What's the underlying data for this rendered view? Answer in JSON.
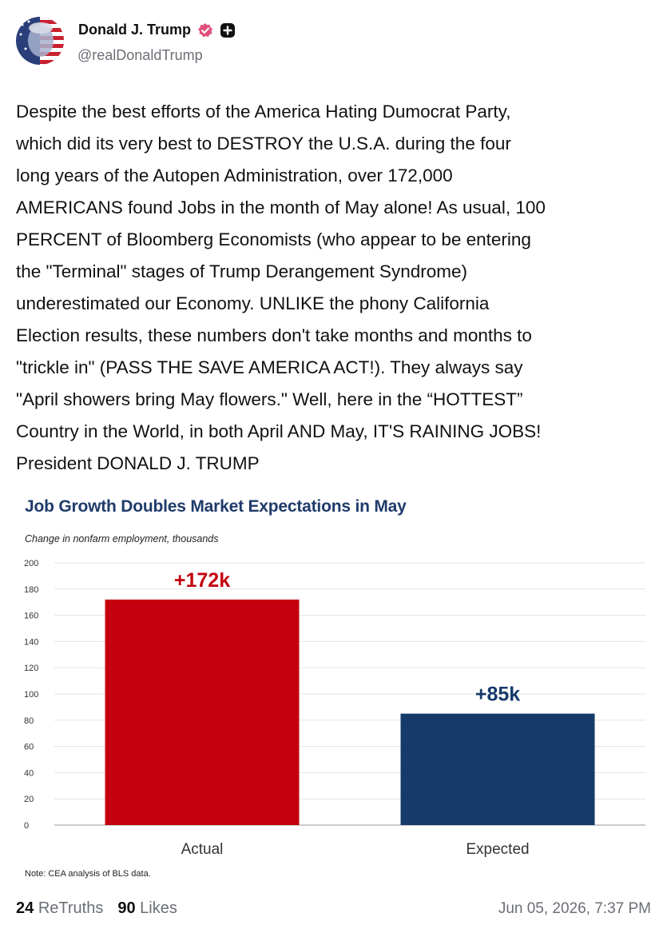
{
  "author": {
    "name": "Donald J. Trump",
    "handle": "@realDonaldTrump"
  },
  "post": {
    "text": "Despite the best efforts of the America Hating Dumocrat Party,\nwhich did its very best to DESTROY the U.S.A. during the four\nlong years of the Autopen Administration, over 172,000\nAMERICANS found Jobs in the month of May alone! As usual, 100\nPERCENT of Bloomberg Economists (who appear to be entering\nthe \"Terminal\" stages of Trump Derangement Syndrome)\nunderestimated our Economy. UNLIKE the phony California\nElection results, these numbers don't take months and months to\n\"trickle in\" (PASS THE SAVE AMERICA ACT!). They always say\n\"April showers bring May flowers.\" Well, here in the “HOTTEST”\nCountry in the World, in both April AND May, IT'S RAINING JOBS!\nPresident DONALD J. TRUMP"
  },
  "chart_data": {
    "type": "bar",
    "title": "Job Growth Doubles Market Expectations in May",
    "subtitle": "Change in nonfarm employment, thousands",
    "note": "Note: CEA analysis of BLS data.",
    "categories": [
      "Actual",
      "Expected"
    ],
    "values": [
      172,
      85
    ],
    "data_labels": [
      "+172k",
      "+85k"
    ],
    "bar_colors": [
      "#c4000f",
      "#163a6a"
    ],
    "label_colors": [
      "#c4000f",
      "#163a6a"
    ],
    "ylim": [
      0,
      200
    ],
    "yticks": [
      "0",
      "20",
      "40",
      "60",
      "80",
      "100",
      "120",
      "140",
      "160",
      "180",
      "200"
    ],
    "xlabel": "",
    "ylabel": "",
    "grid": true,
    "legend": "none"
  },
  "stats": {
    "retruths_count": "24",
    "retruths_label": "ReTruths",
    "likes_count": "90",
    "likes_label": "Likes"
  },
  "timestamp": "Jun 05, 2026, 7:37 PM",
  "icons": {
    "verified": "verified-badge-icon",
    "plus": "plus-square-icon"
  },
  "colors": {
    "verified_badge": "#e0527d",
    "title_blue": "#1f3b6b",
    "muted_text": "#6b6f76"
  }
}
